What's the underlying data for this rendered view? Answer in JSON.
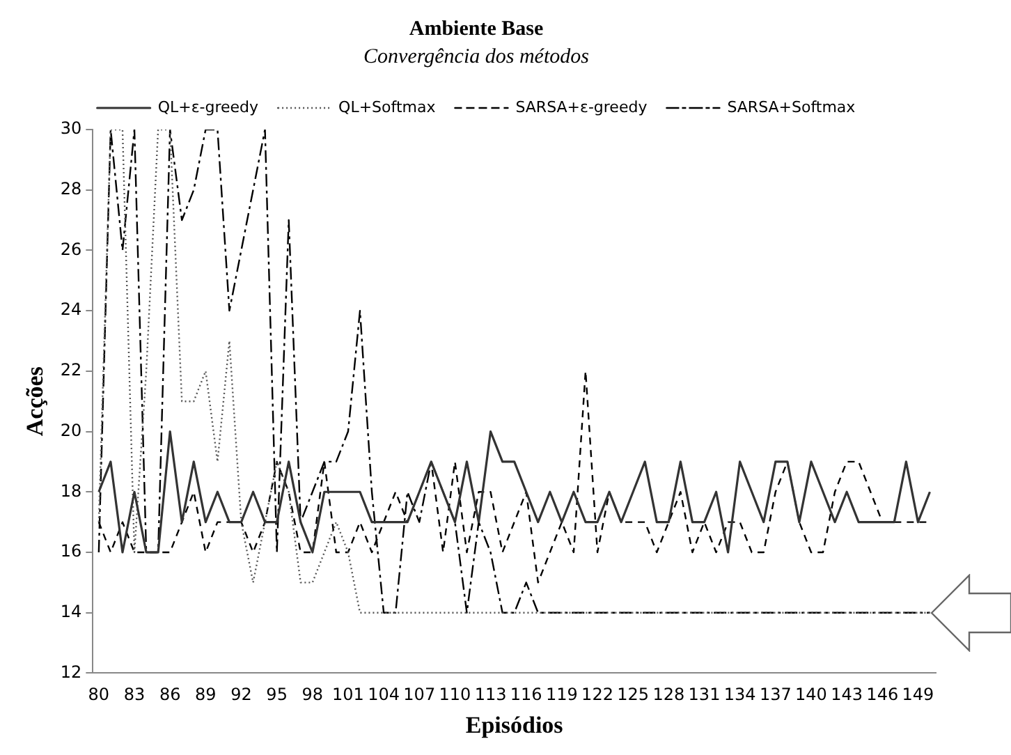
{
  "chart_data": {
    "type": "line",
    "title": "Ambiente Base",
    "subtitle": "Convergência dos métodos",
    "xlabel": "Episódios",
    "ylabel": "Acções",
    "categories": [
      "80",
      null,
      null,
      "83",
      null,
      null,
      "86",
      null,
      null,
      "89",
      null,
      null,
      "92",
      null,
      null,
      "95",
      null,
      null,
      "98",
      null,
      null,
      "101",
      null,
      null,
      "104",
      null,
      null,
      "107",
      null,
      null,
      "110",
      null,
      null,
      "113",
      null,
      null,
      "116",
      null,
      null,
      "119",
      null,
      null,
      "122",
      null,
      null,
      "125",
      null,
      null,
      "128",
      null,
      null,
      "131",
      null,
      null,
      "134",
      null,
      null,
      "137",
      null,
      null,
      "140",
      null,
      null,
      "143",
      null,
      null,
      "146",
      null,
      null,
      "149",
      null
    ],
    "ylim": [
      12,
      30
    ],
    "yticks": [
      12,
      14,
      16,
      18,
      20,
      22,
      24,
      26,
      28,
      30
    ],
    "grid": false,
    "legend": "top",
    "marker": "none",
    "series": [
      {
        "name": "QL+ε-greedy",
        "color": "#333333",
        "line_style": "solid",
        "values": [
          18,
          19,
          16,
          18,
          16,
          16,
          20,
          17,
          19,
          17,
          18,
          17,
          17,
          18,
          17,
          17,
          19,
          17,
          16,
          18,
          18,
          18,
          18,
          17,
          17,
          17,
          17,
          18,
          19,
          18,
          17,
          19,
          17,
          20,
          19,
          19,
          18,
          17,
          18,
          17,
          18,
          17,
          17,
          18,
          17,
          18,
          19,
          17,
          17,
          19,
          17,
          17,
          18,
          16,
          19,
          18,
          17,
          19,
          19,
          17,
          19,
          18,
          17,
          18,
          17,
          17,
          17,
          17,
          19,
          17,
          18
        ]
      },
      {
        "name": "QL+Softmax",
        "color": "#555555",
        "line_style": "dotted",
        "values": [
          17,
          30,
          30,
          16,
          22,
          30,
          30,
          21,
          21,
          22,
          19,
          23,
          17,
          15,
          17,
          19,
          18,
          15,
          15,
          16,
          17,
          16,
          14,
          14,
          14,
          14,
          14,
          14,
          14,
          14,
          14,
          14,
          14,
          14,
          14,
          14,
          14,
          14,
          14,
          14,
          14,
          14,
          14,
          14,
          14,
          14,
          14,
          14,
          14,
          14,
          14,
          14,
          14,
          14,
          14,
          14,
          14,
          14,
          14,
          14,
          14,
          14,
          14,
          14,
          14,
          14,
          14,
          14,
          14,
          14,
          14
        ]
      },
      {
        "name": "SARSA+ε-greedy",
        "color": "#000000",
        "line_style": "dashed",
        "values": [
          17,
          16,
          17,
          16,
          16,
          16,
          16,
          17,
          18,
          16,
          17,
          17,
          17,
          16,
          17,
          19,
          18,
          16,
          16,
          19,
          16,
          16,
          17,
          16,
          17,
          18,
          17,
          18,
          19,
          16,
          19,
          16,
          18,
          18,
          16,
          17,
          18,
          15,
          16,
          17,
          16,
          22,
          16,
          18,
          17,
          17,
          17,
          16,
          17,
          18,
          16,
          17,
          16,
          17,
          17,
          16,
          16,
          18,
          19,
          17,
          16,
          16,
          18,
          19,
          19,
          18,
          17,
          17,
          17,
          17,
          17
        ]
      },
      {
        "name": "SARSA+Softmax",
        "color": "#000000",
        "line_style": "dashdot",
        "values": [
          16,
          30,
          26,
          30,
          16,
          16,
          30,
          27,
          28,
          30,
          30,
          24,
          26,
          28,
          30,
          16,
          27,
          17,
          18,
          19,
          19,
          20,
          24,
          18,
          14,
          14,
          18,
          17,
          19,
          18,
          17,
          14,
          17,
          16,
          14,
          14,
          15,
          14,
          14,
          14,
          14,
          14,
          14,
          14,
          14,
          14,
          14,
          14,
          14,
          14,
          14,
          14,
          14,
          14,
          14,
          14,
          14,
          14,
          14,
          14,
          14,
          14,
          14,
          14,
          14,
          14,
          14,
          14,
          14,
          14,
          14
        ]
      }
    ]
  }
}
